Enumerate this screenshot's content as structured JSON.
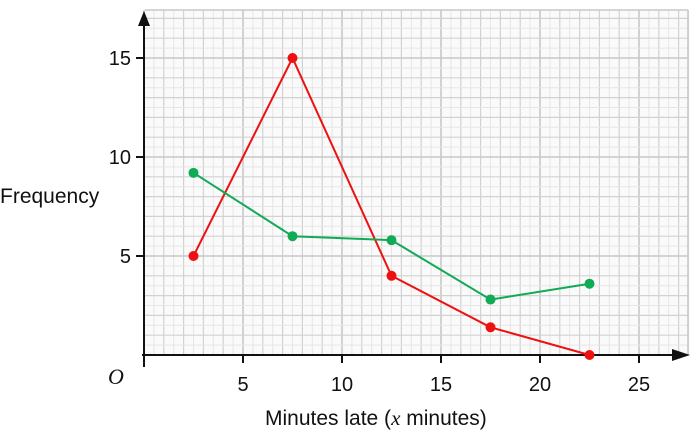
{
  "chart_data": {
    "type": "line",
    "title": "",
    "xlabel": "Minutes late (x minutes)",
    "xlabel_parts": {
      "before": "Minutes late (",
      "var": "x",
      "after": " minutes)"
    },
    "ylabel": "Frequency",
    "origin_label": "O",
    "xlim": [
      0,
      27.3
    ],
    "ylim": [
      0,
      17.2
    ],
    "x_ticks": [
      5,
      10,
      15,
      20,
      25
    ],
    "y_ticks": [
      5,
      10,
      15
    ],
    "grid": true,
    "legend": null,
    "series": [
      {
        "name": "red",
        "color": "#ee1111",
        "x": [
          2.5,
          7.5,
          12.5,
          17.5,
          22.5
        ],
        "values": [
          5,
          15,
          4,
          1.4,
          0
        ]
      },
      {
        "name": "green",
        "color": "#11aa55",
        "x": [
          2.5,
          7.5,
          12.5,
          17.5,
          22.5
        ],
        "values": [
          9.2,
          6,
          5.8,
          2.8,
          3.6
        ]
      }
    ]
  }
}
